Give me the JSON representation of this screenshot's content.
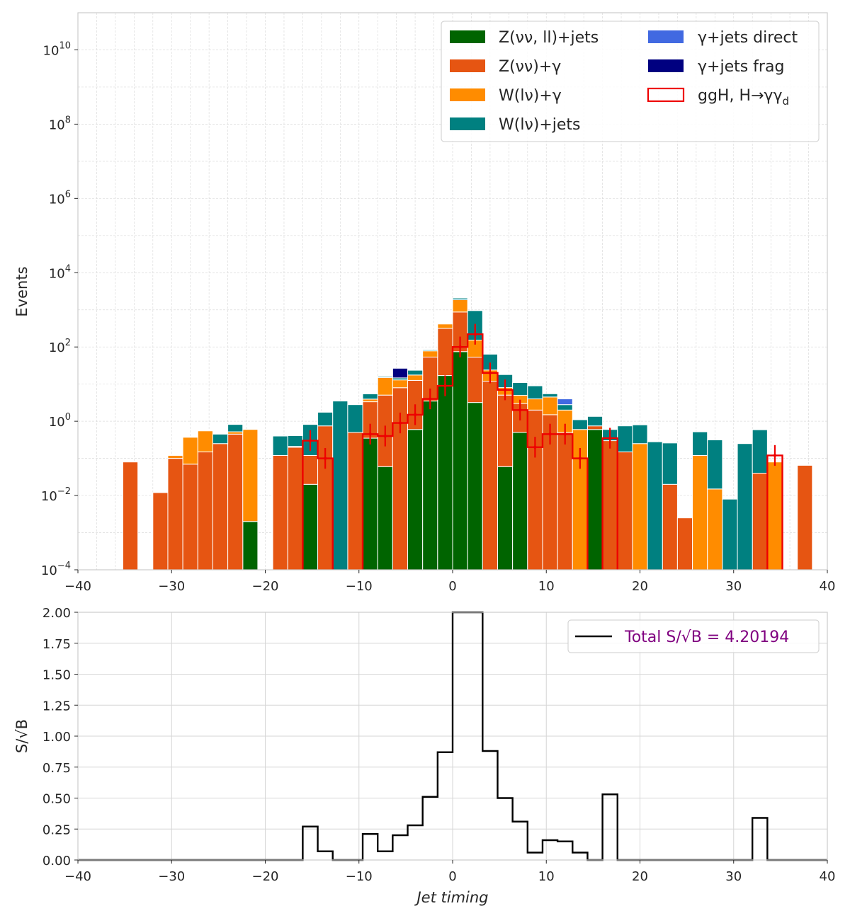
{
  "chart_data": [
    {
      "type": "bar",
      "stacked": true,
      "yscale": "log",
      "xlabel": "",
      "ylabel": "Events",
      "xlim": [
        -40,
        40
      ],
      "ylim": [
        0.0001,
        100000000000
      ],
      "xticks": [
        "−40",
        "−30",
        "−20",
        "−10",
        "0",
        "10",
        "20",
        "30",
        "40"
      ],
      "yticks": [
        {
          "base": "10",
          "exp": "−4",
          "value": 0.0001
        },
        {
          "base": "10",
          "exp": "−2",
          "value": 0.01
        },
        {
          "base": "10",
          "exp": "0",
          "value": 1
        },
        {
          "base": "10",
          "exp": "2",
          "value": 100
        },
        {
          "base": "10",
          "exp": "4",
          "value": 10000
        },
        {
          "base": "10",
          "exp": "6",
          "value": 1000000
        },
        {
          "base": "10",
          "exp": "8",
          "value": 100000000
        },
        {
          "base": "10",
          "exp": "10",
          "value": 10000000000
        }
      ],
      "grid": true,
      "legend_position": "top-right",
      "bin_edges": [
        -36.8,
        -35.2,
        -33.6,
        -32.0,
        -30.4,
        -28.8,
        -27.2,
        -25.6,
        -24.0,
        -22.4,
        -20.8,
        -19.2,
        -17.6,
        -16.0,
        -14.4,
        -12.8,
        -11.2,
        -9.6,
        -8.0,
        -6.4,
        -4.8,
        -3.2,
        -1.6,
        0.0,
        1.6,
        3.2,
        4.8,
        6.4,
        8.0,
        9.6,
        11.2,
        12.8,
        14.4,
        16.0,
        17.6,
        19.2,
        20.8,
        22.4,
        24.0,
        25.6,
        27.2,
        28.8,
        30.4,
        32.0,
        33.6,
        35.2,
        36.8,
        38.4
      ],
      "series": [
        {
          "name": "Z(νν, ll)+jets",
          "color": "#006400",
          "values": [
            0,
            0,
            0,
            0,
            0,
            0,
            0,
            0,
            0,
            0.002,
            0,
            0,
            0,
            0.02,
            0,
            0,
            0,
            0.35,
            0.06,
            0,
            0.6,
            3.5,
            17,
            75,
            3.2,
            0,
            0.06,
            0.5,
            0,
            0,
            0,
            0,
            0.6,
            0,
            0,
            0,
            0,
            0,
            0,
            0,
            0,
            0,
            0,
            0,
            0,
            0,
            0
          ]
        },
        {
          "name": "Z(νν)+γ",
          "color": "#E65512",
          "values": [
            0,
            0.08,
            0,
            0.012,
            0.1,
            0.07,
            0.15,
            0.25,
            0.45,
            0,
            0,
            0.12,
            0.2,
            0.1,
            0.75,
            0,
            0.5,
            3.0,
            5.0,
            8.0,
            12.0,
            50.0,
            300.0,
            800.0,
            50.0,
            12.0,
            5.0,
            2.5,
            2.0,
            1.5,
            0.5,
            0,
            0.15,
            0.3,
            0.15,
            0,
            0,
            0.02,
            0.0025,
            0,
            0,
            0,
            0,
            0.04,
            0,
            0,
            0.065
          ]
        },
        {
          "name": "W(lν)+γ",
          "color": "#FF8C00",
          "values": [
            0,
            0,
            0,
            0,
            0.02,
            0.3,
            0.4,
            0,
            0.07,
            0.6,
            0,
            0,
            0.01,
            0,
            0,
            0,
            0,
            0.6,
            10,
            5,
            5,
            25,
            100,
            1000,
            100,
            12,
            3,
            2,
            2,
            3,
            1.5,
            0.6,
            0,
            0,
            0,
            0.25,
            0,
            0,
            0,
            0.12,
            0.015,
            0,
            0,
            0,
            0.08,
            0,
            0
          ]
        },
        {
          "name": "W(lν)+jets",
          "color": "#008080",
          "values": [
            0,
            0,
            0,
            0,
            0,
            0,
            0,
            0.2,
            0.3,
            0,
            0,
            0.28,
            0.2,
            0.7,
            1.0,
            3.5,
            2.3,
            1.5,
            1.0,
            1.7,
            6.0,
            5.0,
            12.0,
            200.0,
            800.0,
            40.0,
            10.0,
            6.0,
            5.0,
            1.0,
            0.8,
            0.5,
            0.6,
            0.3,
            0.6,
            0.55,
            0.28,
            0.24,
            0,
            0.4,
            0.3,
            0.008,
            0.25,
            0.55,
            0,
            0,
            0
          ]
        },
        {
          "name": "γ+jets direct",
          "color": "#4169E1",
          "values": [
            0,
            0,
            0,
            0,
            0,
            0,
            0,
            0,
            0,
            0,
            0,
            0,
            0,
            0,
            0,
            0,
            0,
            0,
            0,
            0,
            0,
            0,
            0,
            0,
            0,
            0,
            0,
            0,
            0,
            0,
            1.2,
            0,
            0,
            0,
            0,
            0,
            0,
            0,
            0,
            0,
            0,
            0,
            0,
            0,
            0,
            0,
            0
          ]
        },
        {
          "name": "γ+jets frag",
          "color": "#000080",
          "values": [
            0,
            0,
            0,
            0,
            0,
            0,
            0,
            0,
            0,
            0,
            0,
            0,
            0,
            0,
            0,
            0,
            0,
            0,
            0,
            12,
            0,
            0,
            0,
            0,
            0,
            0,
            0,
            0,
            0,
            0,
            0,
            0,
            0,
            0,
            0,
            0,
            0,
            0,
            0,
            0,
            0,
            0,
            0,
            0,
            0,
            0,
            0
          ]
        }
      ],
      "signal": {
        "name": "ggH, H→γγ",
        "name_sub": "d",
        "color": "#EE0000",
        "values": [
          0,
          0,
          0,
          0,
          0,
          0,
          0,
          0,
          0,
          0,
          0,
          0,
          0,
          0.3,
          0.1,
          0,
          0,
          0.45,
          0.4,
          0.9,
          1.5,
          4.0,
          9.0,
          100.0,
          220.0,
          20.0,
          7.0,
          2.0,
          0.2,
          0.45,
          0.45,
          0.1,
          0,
          0.35,
          0,
          0,
          0,
          0,
          0,
          0,
          0,
          0,
          0,
          0,
          0.12,
          0,
          0
        ]
      }
    },
    {
      "type": "line",
      "drawstyle": "steps",
      "xlabel": "Jet timing",
      "ylabel": "S/√B",
      "xlim": [
        -40,
        40
      ],
      "ylim": [
        0,
        2
      ],
      "xticks": [
        "−40",
        "−30",
        "−20",
        "−10",
        "0",
        "10",
        "20",
        "30",
        "40"
      ],
      "yticks": [
        "0.00",
        "0.25",
        "0.50",
        "0.75",
        "1.00",
        "1.25",
        "1.50",
        "1.75",
        "2.00"
      ],
      "grid": true,
      "legend_position": "top-right",
      "legend_label": "Total S/√B = 4.20194",
      "legend_color": "#800080",
      "line_color": "#000000",
      "bin_edges": [
        -40,
        -38.4,
        -36.8,
        -35.2,
        -33.6,
        -32.0,
        -30.4,
        -28.8,
        -27.2,
        -25.6,
        -24.0,
        -22.4,
        -20.8,
        -19.2,
        -17.6,
        -16.0,
        -14.4,
        -12.8,
        -11.2,
        -9.6,
        -8.0,
        -6.4,
        -4.8,
        -3.2,
        -1.6,
        0.0,
        1.6,
        3.2,
        4.8,
        6.4,
        8.0,
        9.6,
        11.2,
        12.8,
        14.4,
        16.0,
        17.6,
        19.2,
        20.8,
        22.4,
        24.0,
        25.6,
        27.2,
        28.8,
        30.4,
        32.0,
        33.6,
        35.2,
        36.8,
        38.4,
        40.0
      ],
      "values": [
        0,
        0,
        0,
        0,
        0,
        0,
        0,
        0,
        0,
        0,
        0,
        0,
        0,
        0,
        0,
        0.27,
        0.07,
        0,
        0,
        0.21,
        0.07,
        0.2,
        0.28,
        0.51,
        0.87,
        4.0,
        4.0,
        0.88,
        0.5,
        0.31,
        0.06,
        0.16,
        0.15,
        0.06,
        0,
        0.53,
        0,
        0,
        0,
        0,
        0,
        0,
        0,
        0,
        0,
        0.34,
        0,
        0,
        0,
        0
      ]
    }
  ]
}
